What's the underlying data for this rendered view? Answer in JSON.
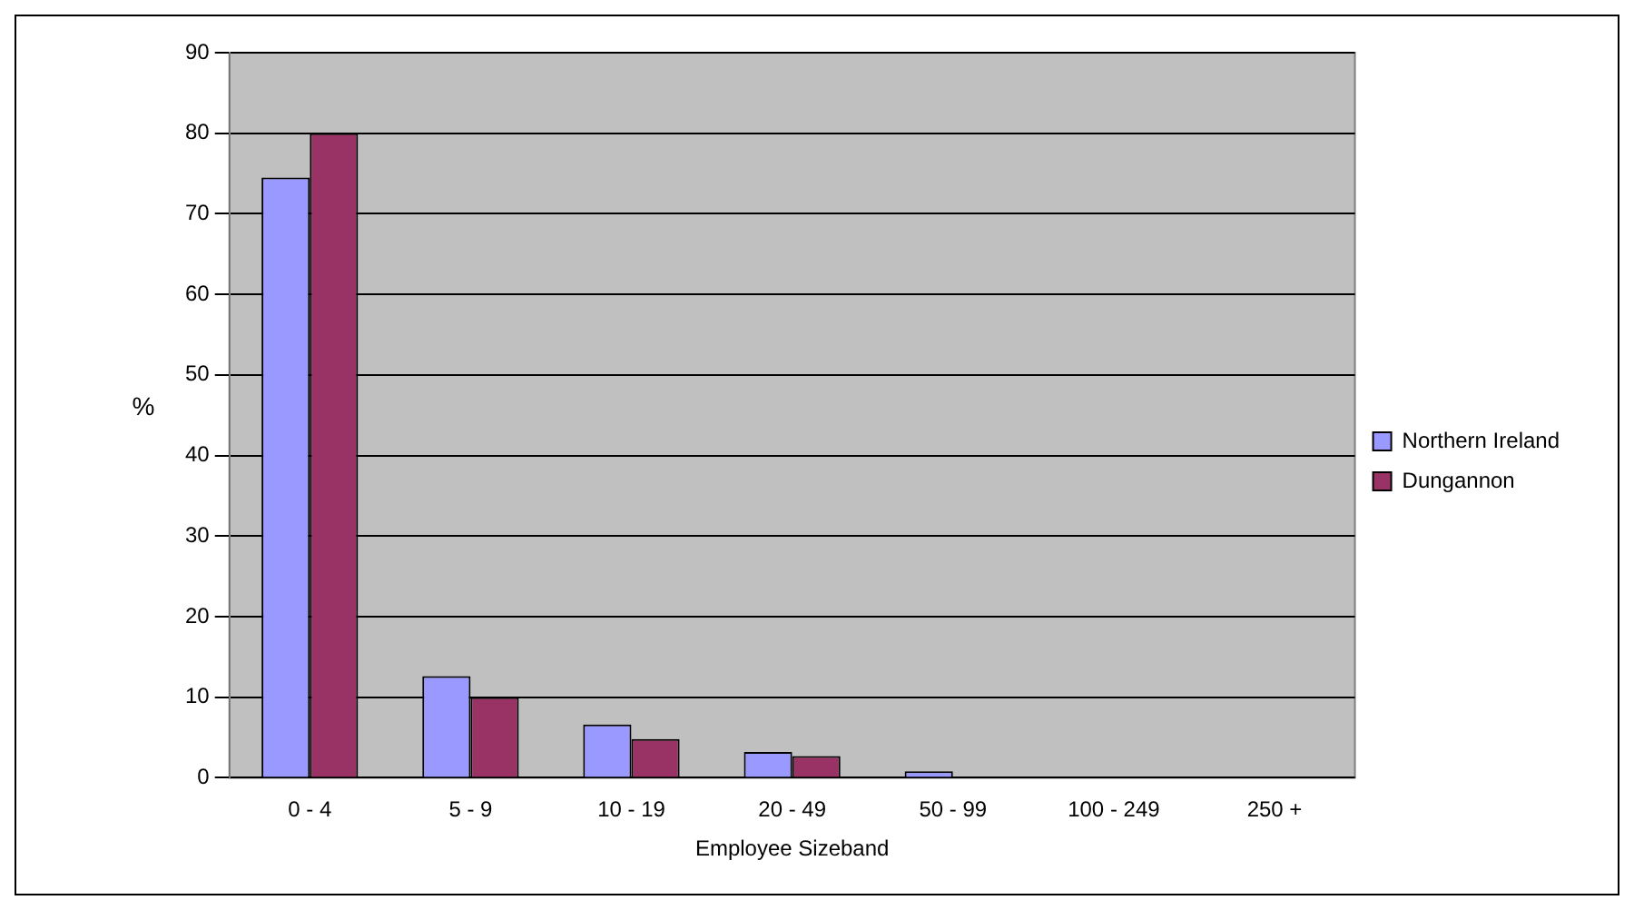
{
  "chart_data": {
    "type": "bar",
    "xlabel": "Employee Sizeband",
    "ylabel": "%",
    "categories": [
      "0 - 4",
      "5 - 9",
      "10 - 19",
      "20 - 49",
      "50 - 99",
      "100 - 249",
      "250 +"
    ],
    "series": [
      {
        "name": "Northern Ireland",
        "color": "#9999ff",
        "values": [
          74.5,
          12.6,
          6.6,
          3.2,
          0.8,
          null,
          null
        ]
      },
      {
        "name": "Dungannon",
        "color": "#993366",
        "values": [
          80,
          10,
          4.8,
          2.7,
          null,
          null,
          null
        ]
      }
    ],
    "ylim": [
      0,
      90
    ],
    "yticks": [
      0,
      10,
      20,
      30,
      40,
      50,
      60,
      70,
      80,
      90
    ],
    "grid": "y",
    "legend": "right"
  }
}
